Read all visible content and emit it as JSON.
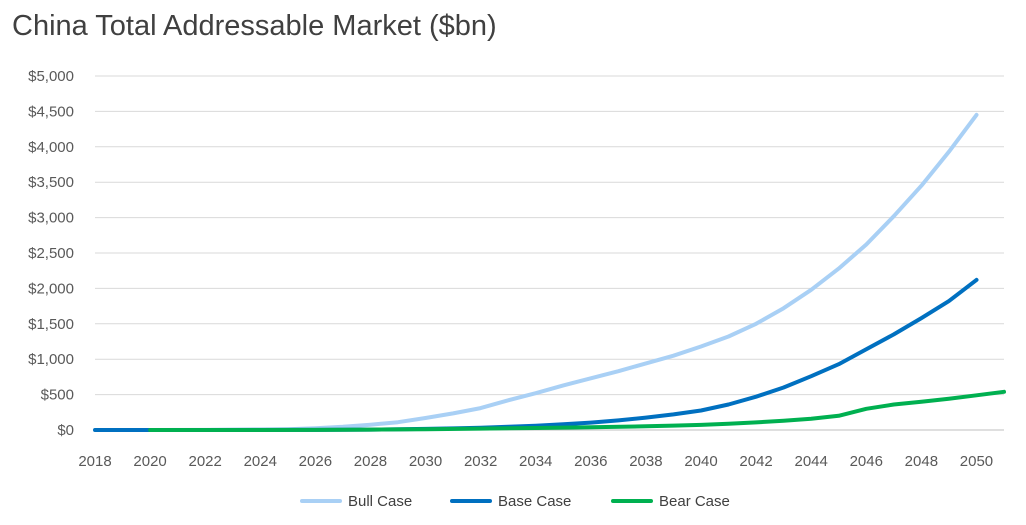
{
  "chart_data": {
    "type": "line",
    "title": "China Total Addressable Market ($bn)",
    "xlabel": "",
    "ylabel": "",
    "ylim": [
      0,
      5000
    ],
    "xlim": [
      2018,
      2051
    ],
    "y_ticks": [
      "$0",
      "$500",
      "$1,000",
      "$1,500",
      "$2,000",
      "$2,500",
      "$3,000",
      "$3,500",
      "$4,000",
      "$4,500",
      "$5,000"
    ],
    "x_ticks": [
      "2018",
      "2020",
      "2022",
      "2024",
      "2026",
      "2028",
      "2030",
      "2032",
      "2034",
      "2036",
      "2038",
      "2040",
      "2042",
      "2044",
      "2046",
      "2048",
      "2050"
    ],
    "grid": true,
    "legend_position": "bottom",
    "series": [
      {
        "name": "Bull Case",
        "color": "#a9d0f5",
        "x": [
          2020,
          2022,
          2024,
          2025,
          2026,
          2027,
          2028,
          2029,
          2030,
          2031,
          2032,
          2033,
          2034,
          2035,
          2036,
          2037,
          2038,
          2039,
          2040,
          2041,
          2042,
          2043,
          2044,
          2045,
          2046,
          2047,
          2048,
          2049,
          2050
        ],
        "values": [
          0,
          2,
          6,
          12,
          25,
          45,
          75,
          110,
          170,
          235,
          310,
          420,
          520,
          630,
          730,
          830,
          940,
          1050,
          1180,
          1320,
          1500,
          1720,
          1980,
          2280,
          2620,
          3020,
          3450,
          3930,
          4450
        ]
      },
      {
        "name": "Base Case",
        "color": "#0070c0",
        "x": [
          2018,
          2019,
          2020,
          2022,
          2024,
          2026,
          2028,
          2030,
          2031,
          2032,
          2033,
          2034,
          2035,
          2036,
          2037,
          2038,
          2039,
          2040,
          2041,
          2042,
          2043,
          2044,
          2045,
          2046,
          2047,
          2048,
          2049,
          2050
        ],
        "values": [
          0,
          0,
          0,
          0,
          1,
          2,
          6,
          15,
          22,
          32,
          45,
          60,
          80,
          105,
          135,
          175,
          220,
          275,
          360,
          470,
          600,
          760,
          930,
          1140,
          1350,
          1580,
          1820,
          2120
        ]
      },
      {
        "name": "Bear Case",
        "color": "#00b050",
        "x": [
          2020,
          2022,
          2024,
          2026,
          2028,
          2030,
          2032,
          2034,
          2036,
          2038,
          2039,
          2040,
          2041,
          2042,
          2043,
          2044,
          2045,
          2046,
          2047,
          2048,
          2049,
          2050,
          2051
        ],
        "values": [
          0,
          0,
          0,
          2,
          6,
          12,
          20,
          28,
          38,
          52,
          62,
          72,
          88,
          108,
          130,
          160,
          200,
          300,
          360,
          400,
          440,
          490,
          540
        ]
      }
    ]
  }
}
